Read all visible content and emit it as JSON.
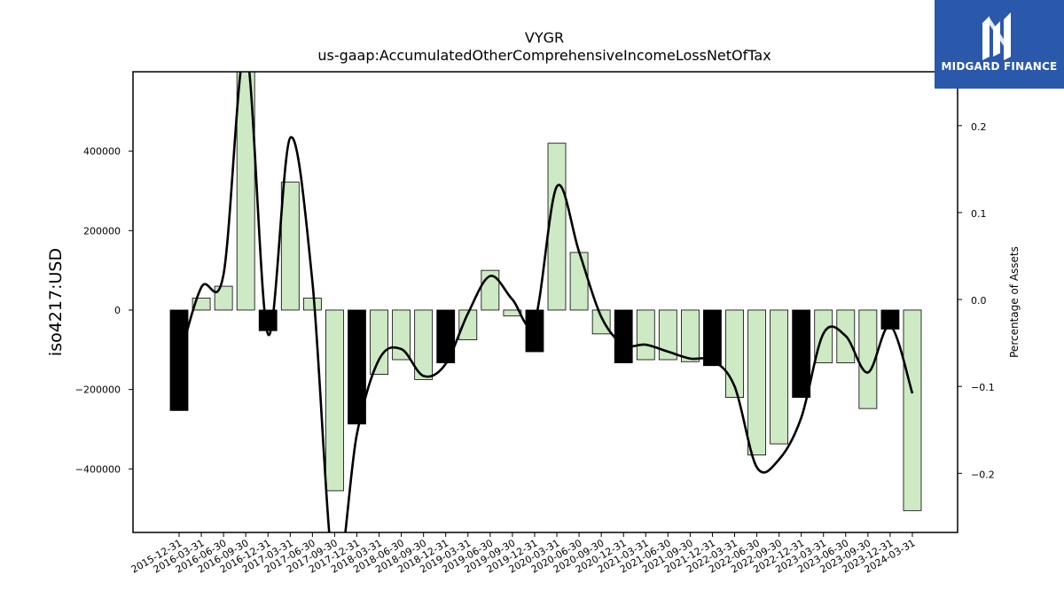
{
  "chart_data": {
    "type": "bar",
    "title": "VYGR",
    "subtitle": "us-gaap:AccumulatedOtherComprehensiveIncomeLossNetOfTax",
    "ylabel": "iso4217:USD",
    "y2label": "Percentage of Assets",
    "ylim": [
      -560000,
      600000
    ],
    "y2lim": [
      -0.268,
      0.262
    ],
    "yticks": [
      -400000,
      -200000,
      0,
      200000,
      400000
    ],
    "y2ticks": [
      -0.2,
      -0.1,
      0.0,
      0.1,
      0.2
    ],
    "y2ticklabels": [
      "−0.2",
      "−0.1",
      "0.0",
      "0.1",
      "0.2"
    ],
    "yticklabels": [
      "−400000",
      "−200000",
      "0",
      "200000",
      "400000"
    ],
    "categories": [
      "2015-12-31",
      "2016-03-31",
      "2016-06-30",
      "2016-09-30",
      "2016-12-31",
      "2017-03-31",
      "2017-06-30",
      "2017-09-30",
      "2017-12-31",
      "2018-03-31",
      "2018-06-30",
      "2018-09-30",
      "2018-12-31",
      "2019-03-31",
      "2019-06-30",
      "2019-09-30",
      "2019-12-31",
      "2020-03-31",
      "2020-06-30",
      "2020-09-30",
      "2020-12-31",
      "2021-03-31",
      "2021-06-30",
      "2021-09-30",
      "2021-12-31",
      "2022-03-31",
      "2022-06-30",
      "2022-09-30",
      "2022-12-31",
      "2023-03-31",
      "2023-06-30",
      "2023-09-30",
      "2023-12-31",
      "2024-03-31"
    ],
    "series": [
      {
        "kind": "bar",
        "values": [
          -253000,
          30000,
          60000,
          620000,
          -52000,
          322000,
          30000,
          -455000,
          -287000,
          -162000,
          -125000,
          -175000,
          -133000,
          -75000,
          100000,
          -15000,
          -105000,
          420000,
          145000,
          -60000,
          -133000,
          -125000,
          -125000,
          -130000,
          -140000,
          -220000,
          -365000,
          -337000,
          -220000,
          -133000,
          -133000,
          -248000,
          -48000,
          -505000
        ],
        "highlight": [
          true,
          false,
          false,
          false,
          true,
          false,
          false,
          false,
          true,
          false,
          false,
          false,
          true,
          false,
          false,
          false,
          true,
          false,
          false,
          false,
          true,
          false,
          false,
          false,
          true,
          false,
          false,
          false,
          true,
          false,
          false,
          false,
          true,
          false
        ]
      },
      {
        "kind": "line",
        "axis": "right",
        "values": [
          -0.07,
          0.014,
          0.029,
          0.288,
          -0.04,
          0.186,
          0.02,
          -0.32,
          -0.155,
          -0.069,
          -0.057,
          -0.088,
          -0.074,
          -0.016,
          0.027,
          0.0,
          -0.025,
          0.13,
          0.055,
          -0.02,
          -0.052,
          -0.052,
          -0.06,
          -0.068,
          -0.07,
          -0.1,
          -0.193,
          -0.184,
          -0.136,
          -0.039,
          -0.042,
          -0.084,
          -0.03,
          -0.108
        ]
      }
    ],
    "colors": {
      "bar": "#cdeac4",
      "bar_highlight": "#000000",
      "bar_edge": "#000000",
      "line": "#000000"
    },
    "grid": false,
    "legend": "none"
  },
  "logo": {
    "text": "MIDGARD FINANCE"
  }
}
